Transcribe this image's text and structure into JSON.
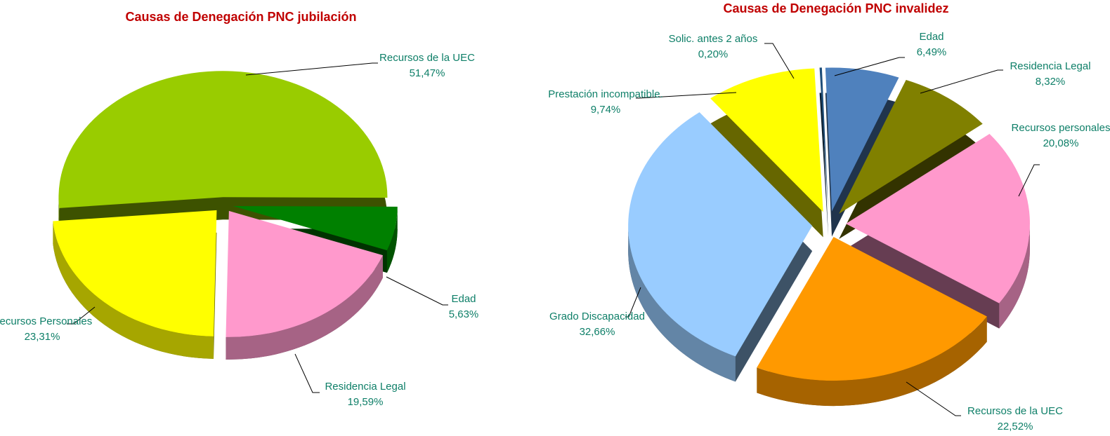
{
  "chart_data": [
    {
      "type": "pie",
      "title": "Causas de Denegación PNC jubilación",
      "categories": [
        "Recursos de la UEC",
        "Edad",
        "Residencia Legal",
        "Recursos Personales"
      ],
      "values": [
        51.47,
        5.63,
        19.59,
        23.31
      ],
      "value_labels": [
        "51,47%",
        "5,63%",
        "19,59%",
        "23,31%"
      ],
      "colors": [
        "#99cc00",
        "#008000",
        "#ff99cc",
        "#ffff00"
      ]
    },
    {
      "type": "pie",
      "title": "Causas de Denegación PNC invalidez",
      "categories": [
        "Edad",
        "Residencia Legal",
        "Recursos personales",
        "Recursos de la UEC",
        "Grado Discapacidad",
        "Prestación incompatible.",
        "Solic. antes 2 años"
      ],
      "values": [
        6.49,
        8.32,
        20.08,
        22.52,
        32.66,
        9.74,
        0.2
      ],
      "value_labels": [
        "6,49%",
        "8,32%",
        "20,08%",
        "22,52%",
        "32,66%",
        "9,74%",
        "0,20%"
      ],
      "colors": [
        "#4f81bd",
        "#808000",
        "#ff99cc",
        "#ff9900",
        "#99ccff",
        "#ffff00",
        "#1f4e79"
      ]
    }
  ]
}
